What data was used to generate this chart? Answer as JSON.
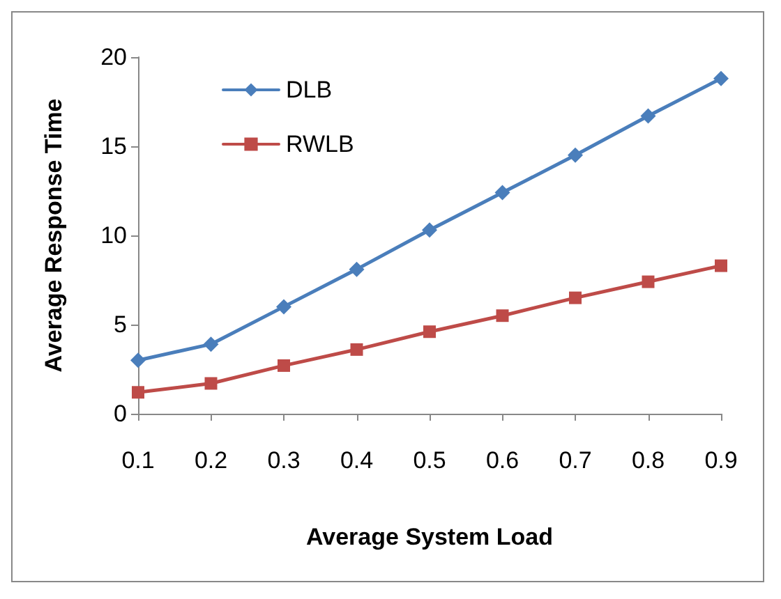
{
  "chart_data": {
    "type": "line",
    "xlabel": "Average System Load",
    "ylabel": "Average Response Time",
    "categories": [
      "0.1",
      "0.2",
      "0.3",
      "0.4",
      "0.5",
      "0.6",
      "0.7",
      "0.8",
      "0.9"
    ],
    "series": [
      {
        "name": "DLB",
        "color": "#4a7ebb",
        "marker": "diamond",
        "values": [
          3.0,
          3.9,
          6.0,
          8.1,
          10.3,
          12.4,
          14.5,
          16.7,
          18.8
        ]
      },
      {
        "name": "RWLB",
        "color": "#be4b48",
        "marker": "square",
        "values": [
          1.2,
          1.7,
          2.7,
          3.6,
          4.6,
          5.5,
          6.5,
          7.4,
          8.3
        ]
      }
    ],
    "ylim": [
      0,
      20
    ],
    "yticks": [
      0,
      5,
      10,
      15,
      20
    ],
    "grid": false,
    "legend": "top left",
    "line_style": "solid"
  }
}
